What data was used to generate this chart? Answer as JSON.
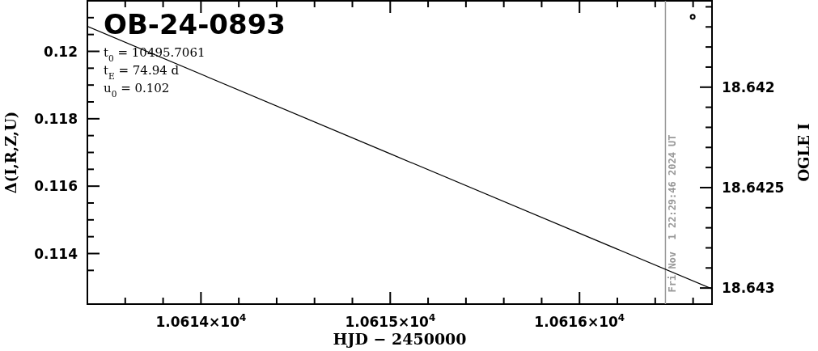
{
  "chart_data": {
    "type": "line",
    "title": "OB-24-0893",
    "xlabel": "HJD − 2450000",
    "ylabel": "Δ(I,R,Z,U)",
    "y2label": "OGLE I",
    "annotations": [
      "t$_{0}$ = 10495.7061",
      "t$_{E}$ = 74.94 d",
      "u$_{0}$ = 0.102",
      {
        "text": "Fri Nov  1 22:29:46 2024 UT",
        "x": 10616.454,
        "y": 0.1128
      }
    ],
    "series": [
      {
        "color": "#000000",
        "x": [
          10613.4,
          10615.0,
          10616.7
        ],
        "values": [
          0.12074,
          0.11696,
          0.11295
        ],
        "marker": "none"
      },
      {
        "type": "scatter",
        "color": "#000000",
        "axis": "y2",
        "x": [
          10616.598
        ],
        "values": [
          18.64165
        ],
        "marker": "circle"
      }
    ],
    "xlim": [
      10613.4,
      10616.7
    ],
    "xticks": [
      {
        "value": 10613.6,
        "label": null
      },
      {
        "value": 10613.8,
        "label": null
      },
      {
        "value": 10614,
        "label": "1.0614×10$^{4}$"
      },
      {
        "value": 10614.2,
        "label": null
      },
      {
        "value": 10614.4,
        "label": null
      },
      {
        "value": 10614.6,
        "label": null
      },
      {
        "value": 10614.8,
        "label": null
      },
      {
        "value": 10615,
        "label": "1.0615×10$^{4}$"
      },
      {
        "value": 10615.2,
        "label": null
      },
      {
        "value": 10615.4,
        "label": null
      },
      {
        "value": 10615.6,
        "label": null
      },
      {
        "value": 10615.8,
        "label": null
      },
      {
        "value": 10616,
        "label": "1.0616×10$^{4}$"
      },
      {
        "value": 10616.2,
        "label": null
      },
      {
        "value": 10616.4,
        "label": null
      },
      {
        "value": 10616.6,
        "label": null
      }
    ],
    "ylim": [
      0.1125,
      0.1215
    ],
    "yticks": [
      {
        "value": 0.1135,
        "label": null
      },
      0.114,
      {
        "value": 0.1145,
        "label": null
      },
      {
        "value": 0.115,
        "label": null
      },
      {
        "value": 0.1155,
        "label": null
      },
      0.116,
      {
        "value": 0.1165,
        "label": null
      },
      {
        "value": 0.117,
        "label": null
      },
      {
        "value": 0.1175,
        "label": null
      },
      0.118,
      {
        "value": 0.1185,
        "label": null
      },
      {
        "value": 0.119,
        "label": null
      },
      {
        "value": 0.1195,
        "label": null
      },
      0.12,
      {
        "value": 0.1205,
        "label": null
      },
      {
        "value": 0.121,
        "label": null
      }
    ],
    "y2lim": [
      18.64308,
      18.64157
    ],
    "y2ticks": [
      {
        "value": 18.6416,
        "label": null
      },
      {
        "value": 18.6417,
        "label": null
      },
      {
        "value": 18.6418,
        "label": null
      },
      {
        "value": 18.6419,
        "label": null
      },
      18.642,
      {
        "value": 18.6421,
        "label": null
      },
      {
        "value": 18.6422,
        "label": null
      },
      {
        "value": 18.6423,
        "label": null
      },
      {
        "value": 18.6424,
        "label": null
      },
      18.6425,
      {
        "value": 18.6426,
        "label": null
      },
      {
        "value": 18.6427,
        "label": null
      },
      {
        "value": 18.6428,
        "label": null
      },
      {
        "value": 18.6429,
        "label": null
      },
      18.643
    ],
    "ref_lines": [
      {
        "axis": "x",
        "value": 10616.454,
        "color": "#999999"
      }
    ],
    "grid": false
  }
}
